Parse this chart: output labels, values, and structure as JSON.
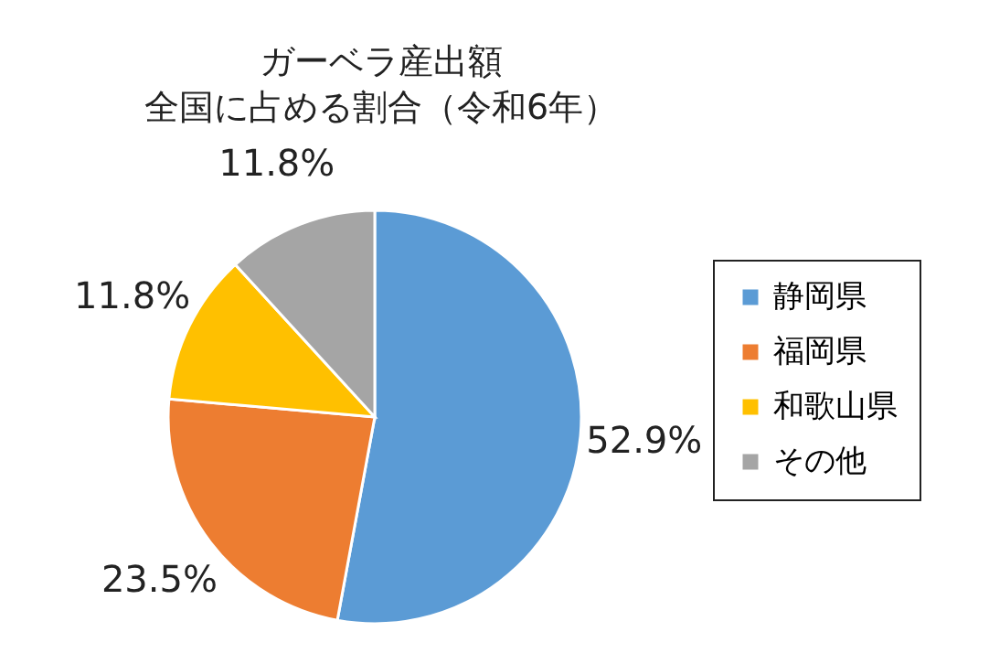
{
  "chart_data": {
    "type": "pie",
    "title": "ガーベラ産出額",
    "subtitle": "全国に占める割合（令和6年）",
    "categories": [
      "静岡県",
      "福岡県",
      "和歌山県",
      "その他"
    ],
    "values": [
      52.9,
      23.5,
      11.8,
      11.8
    ],
    "value_labels": [
      "52.9%",
      "23.5%",
      "11.8%",
      "11.8%"
    ],
    "colors": [
      "#5b9bd5",
      "#ed7d31",
      "#ffc000",
      "#a5a5a5"
    ],
    "legend": "right"
  }
}
